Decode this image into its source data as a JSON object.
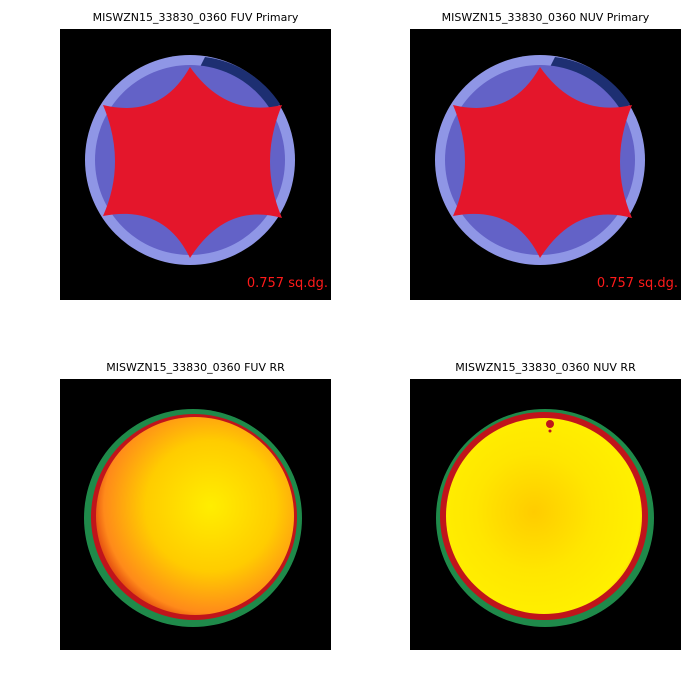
{
  "panels": [
    {
      "title": "MISWZN15_33830_0360 FUV Primary",
      "kind": "coverage-map",
      "area_label": "0.757 sq.dg."
    },
    {
      "title": "MISWZN15_33830_0360 NUV Primary",
      "kind": "coverage-map",
      "area_label": "0.757 sq.dg."
    },
    {
      "title": "MISWZN15_33830_0360 FUV RR",
      "kind": "response-map"
    },
    {
      "title": "MISWZN15_33830_0360 NUV RR",
      "kind": "response-map"
    }
  ],
  "colors": {
    "background": "#000000",
    "outer_ring": "#8f96e6",
    "inner_lobes": "#6362c7",
    "edge_arc": "#1d2f72",
    "coverage_fill": "#e4162b",
    "area_label": "#ff1a1a",
    "rr_green": "#1f8a4a",
    "rr_red": "#c0141b",
    "rr_orange": "#ff8a1a",
    "rr_yellow": "#ffee00"
  }
}
